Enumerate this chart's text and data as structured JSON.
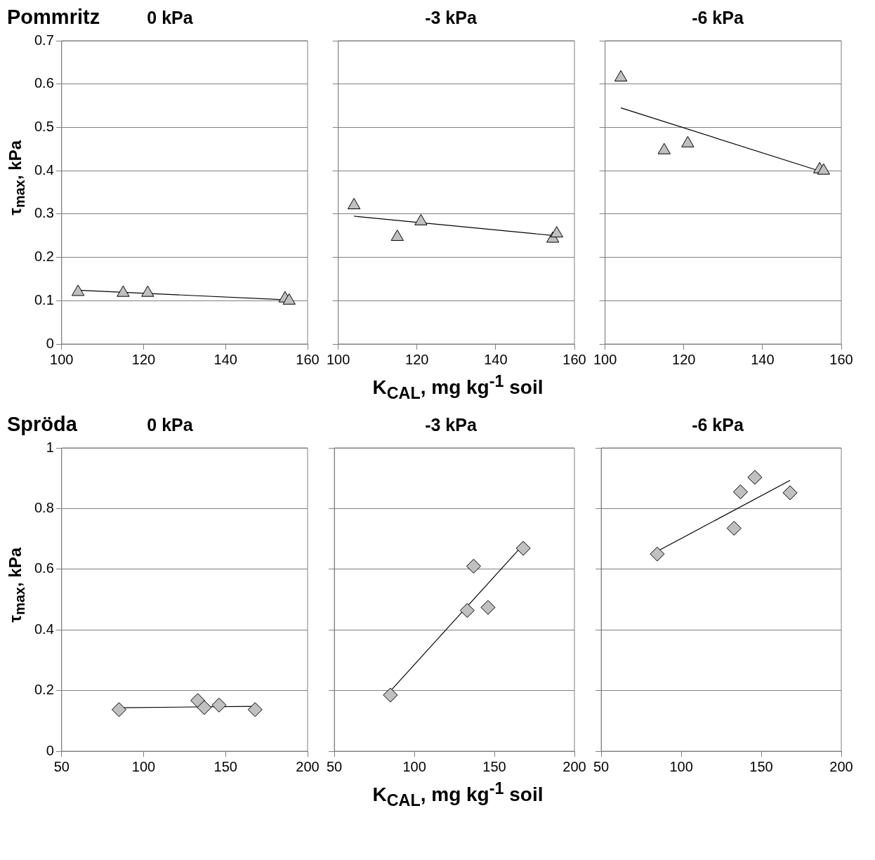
{
  "chart_data": [
    {
      "type": "scatter",
      "title": "0 kPa",
      "ylabel": "τ$_{max}$, kPa",
      "annotations": [
        "Pommritz"
      ],
      "grid": "y",
      "xlim": [
        100,
        160
      ],
      "xticks": [
        100,
        120,
        140,
        160
      ],
      "ylim": [
        0,
        0.7
      ],
      "yticks": [
        0,
        0.1,
        0.2,
        0.3,
        0.4,
        0.5,
        0.6,
        0.7
      ],
      "series": [
        {
          "marker": "triangle",
          "color": "#c0c0c0",
          "x": [
            104,
            115,
            121,
            154.5,
            155.5
          ],
          "values": [
            0.12,
            0.118,
            0.118,
            0.105,
            0.1
          ]
        },
        {
          "type": "line",
          "marker": "none",
          "color": "#000000",
          "x": [
            104,
            155
          ],
          "values": [
            0.124,
            0.102
          ]
        }
      ]
    },
    {
      "type": "scatter",
      "title": "-3 kPa",
      "xlabel": "K$_{CAL}$, mg kg$^{-1}$ soil",
      "grid": "y",
      "tick_labels": "x",
      "xlim": [
        100,
        160
      ],
      "xticks": [
        100,
        120,
        140,
        160
      ],
      "ylim": [
        0,
        0.7
      ],
      "yticks": [
        0,
        0.1,
        0.2,
        0.3,
        0.4,
        0.5,
        0.6,
        0.7
      ],
      "series": [
        {
          "marker": "triangle",
          "color": "#c0c0c0",
          "x": [
            104,
            115,
            121,
            154.5,
            155.5
          ],
          "values": [
            0.32,
            0.247,
            0.283,
            0.243,
            0.255
          ]
        },
        {
          "type": "line",
          "marker": "none",
          "color": "#000000",
          "x": [
            104,
            155
          ],
          "values": [
            0.295,
            0.25
          ]
        }
      ]
    },
    {
      "type": "scatter",
      "title": "-6 kPa",
      "grid": "y",
      "tick_labels": "x",
      "xlim": [
        100,
        160
      ],
      "xticks": [
        100,
        120,
        140,
        160
      ],
      "ylim": [
        0,
        0.7
      ],
      "yticks": [
        0,
        0.1,
        0.2,
        0.3,
        0.4,
        0.5,
        0.6,
        0.7
      ],
      "series": [
        {
          "marker": "triangle",
          "color": "#c0c0c0",
          "x": [
            104,
            115,
            121,
            154.5,
            155.5
          ],
          "values": [
            0.615,
            0.447,
            0.463,
            0.403,
            0.4
          ]
        },
        {
          "type": "line",
          "marker": "none",
          "color": "#000000",
          "x": [
            104,
            156
          ],
          "values": [
            0.545,
            0.395
          ]
        }
      ]
    },
    {
      "type": "scatter",
      "title": "0 kPa",
      "ylabel": "τ$_{max}$, kPa",
      "annotations": [
        "Spröda"
      ],
      "grid": "y",
      "xlim": [
        50,
        200
      ],
      "xticks": [
        50,
        100,
        150,
        200
      ],
      "ylim": [
        0,
        1
      ],
      "yticks": [
        0,
        0.2,
        0.4,
        0.6,
        0.8,
        1
      ],
      "series": [
        {
          "marker": "diamond",
          "color": "#c0c0c0",
          "x": [
            85,
            133,
            137,
            146,
            168
          ],
          "values": [
            0.137,
            0.167,
            0.144,
            0.152,
            0.137
          ]
        },
        {
          "type": "line",
          "marker": "none",
          "color": "#000000",
          "x": [
            85,
            167
          ],
          "values": [
            0.143,
            0.148
          ]
        }
      ]
    },
    {
      "type": "scatter",
      "title": "-3 kPa",
      "xlabel": "K$_{CAL}$, mg kg$^{-1}$ soil",
      "grid": "y",
      "tick_labels": "x",
      "xlim": [
        50,
        200
      ],
      "xticks": [
        50,
        100,
        150,
        200
      ],
      "ylim": [
        0,
        1
      ],
      "yticks": [
        0,
        0.2,
        0.4,
        0.6,
        0.8,
        1
      ],
      "series": [
        {
          "marker": "diamond",
          "color": "#c0c0c0",
          "x": [
            85,
            133,
            137,
            146,
            168
          ],
          "values": [
            0.185,
            0.464,
            0.61,
            0.474,
            0.669
          ]
        },
        {
          "type": "line",
          "marker": "none",
          "color": "#000000",
          "x": [
            86,
            167
          ],
          "values": [
            0.204,
            0.675
          ]
        }
      ]
    },
    {
      "type": "scatter",
      "title": "-6 kPa",
      "grid": "y",
      "tick_labels": "x",
      "xlim": [
        50,
        200
      ],
      "xticks": [
        50,
        100,
        150,
        200
      ],
      "ylim": [
        0,
        1
      ],
      "yticks": [
        0,
        0.2,
        0.4,
        0.6,
        0.8,
        1
      ],
      "series": [
        {
          "marker": "diamond",
          "color": "#c0c0c0",
          "x": [
            85,
            133,
            137,
            146,
            168
          ],
          "values": [
            0.65,
            0.735,
            0.855,
            0.903,
            0.852
          ]
        },
        {
          "type": "line",
          "marker": "none",
          "color": "#000000",
          "x": [
            85,
            168
          ],
          "values": [
            0.659,
            0.893
          ]
        }
      ]
    }
  ]
}
